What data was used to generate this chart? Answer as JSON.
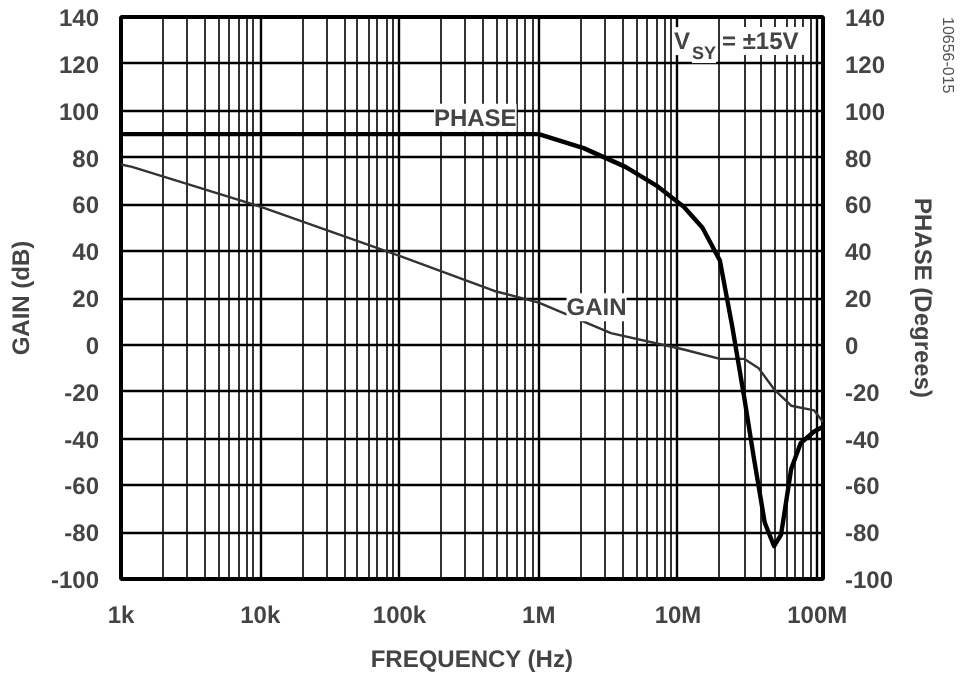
{
  "chart_data": {
    "type": "line",
    "xlabel": "FREQUENCY (Hz)",
    "ylabel": "GAIN (dB)",
    "y2label": "PHASE (Degrees)",
    "log": "x",
    "grid": true,
    "legend": false,
    "xlim": [
      1000,
      110000000
    ],
    "xticks": [
      {
        "value": 1000,
        "label": "1k"
      },
      {
        "value": 10000,
        "label": "10k"
      },
      {
        "value": 100000,
        "label": "100k"
      },
      {
        "value": 1000000,
        "label": "1M"
      },
      {
        "value": 10000000,
        "label": "10M"
      },
      {
        "value": 100000000,
        "label": "100M"
      }
    ],
    "ylim": [
      -100,
      140
    ],
    "yticks": [
      -100,
      -80,
      -60,
      -40,
      -20,
      0,
      20,
      40,
      60,
      80,
      100,
      120,
      140
    ],
    "y2lim": [
      -100,
      140
    ],
    "y2ticks": [
      -100,
      -80,
      -60,
      -40,
      -20,
      0,
      20,
      40,
      60,
      80,
      100,
      120,
      140
    ],
    "series": [
      {
        "name": "GAIN",
        "color": "#333333",
        "x": [
          1000,
          1200,
          10000,
          100000,
          480000,
          1000000,
          3300000,
          11000000,
          20000000,
          30000000,
          38000000,
          49000000,
          65000000,
          95000000,
          110000000
        ],
        "values": [
          77,
          76,
          59,
          38,
          23,
          18,
          5,
          -2,
          -6,
          -6,
          -10,
          -19,
          -26,
          -28,
          -33
        ]
      },
      {
        "name": "PHASE",
        "color": "#000000",
        "axis": "y2",
        "x": [
          1000,
          1000000,
          2100000,
          4200000,
          7000000,
          11000000,
          15000000,
          20000000,
          24500000,
          30000000,
          35000000,
          42000000,
          49000000,
          55000000,
          65000000,
          76000000,
          95000000,
          110000000
        ],
        "values": [
          90,
          90,
          84,
          76,
          68,
          59,
          50,
          36,
          8,
          -23,
          -48,
          -76,
          -86,
          -81,
          -53,
          -42,
          -37,
          -35
        ]
      }
    ],
    "annotations": [
      "V$_{SY}$ = ±15V",
      "10656-015"
    ]
  }
}
